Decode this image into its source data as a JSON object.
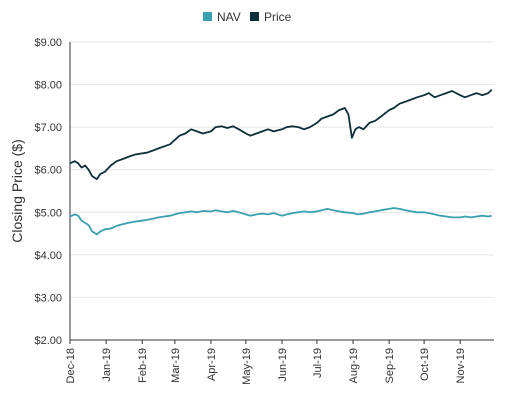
{
  "colors": {
    "nav": "#3a9fae",
    "price": "#0d2f3a",
    "grid": "#e6e6e6",
    "axis": "#333333"
  },
  "chart_data": {
    "type": "line",
    "ylabel": "Closing Price ($)",
    "ylim": [
      2,
      9
    ],
    "yticks": [
      {
        "value": 2,
        "label": "$2.00"
      },
      {
        "value": 3,
        "label": "$3.00"
      },
      {
        "value": 4,
        "label": "$4.00"
      },
      {
        "value": 5,
        "label": "$5.00"
      },
      {
        "value": 6,
        "label": "$6.00"
      },
      {
        "value": 7,
        "label": "$7.00"
      },
      {
        "value": 8,
        "label": "$8.00"
      },
      {
        "value": 9,
        "label": "$9.00"
      }
    ],
    "xlim": [
      "2018-12-01",
      "2019-11-30"
    ],
    "xticks": [
      {
        "date": "2018-12-01",
        "label": "Dec-18"
      },
      {
        "date": "2019-01-01",
        "label": "Jan-19"
      },
      {
        "date": "2019-02-01",
        "label": "Feb-19"
      },
      {
        "date": "2019-03-01",
        "label": "Mar-19"
      },
      {
        "date": "2019-04-01",
        "label": "Apr-19"
      },
      {
        "date": "2019-05-01",
        "label": "May-19"
      },
      {
        "date": "2019-06-01",
        "label": "Jun-19"
      },
      {
        "date": "2019-07-01",
        "label": "Jul-19"
      },
      {
        "date": "2019-08-01",
        "label": "Aug-19"
      },
      {
        "date": "2019-09-01",
        "label": "Sep-19"
      },
      {
        "date": "2019-10-01",
        "label": "Oct-19"
      },
      {
        "date": "2019-11-01",
        "label": "Nov-19"
      }
    ],
    "legend_position": "top-center",
    "grid": "horizontal",
    "series": [
      {
        "name": "NAV",
        "color": "#3a9fae",
        "points": [
          [
            "2018-12-01",
            4.9
          ],
          [
            "2018-12-05",
            4.95
          ],
          [
            "2018-12-08",
            4.92
          ],
          [
            "2018-12-11",
            4.8
          ],
          [
            "2018-12-14",
            4.75
          ],
          [
            "2018-12-17",
            4.7
          ],
          [
            "2018-12-20",
            4.55
          ],
          [
            "2018-12-24",
            4.48
          ],
          [
            "2018-12-27",
            4.55
          ],
          [
            "2018-12-31",
            4.6
          ],
          [
            "2019-01-05",
            4.62
          ],
          [
            "2019-01-10",
            4.68
          ],
          [
            "2019-01-15",
            4.72
          ],
          [
            "2019-01-20",
            4.75
          ],
          [
            "2019-01-25",
            4.78
          ],
          [
            "2019-01-31",
            4.8
          ],
          [
            "2019-02-05",
            4.82
          ],
          [
            "2019-02-10",
            4.85
          ],
          [
            "2019-02-15",
            4.88
          ],
          [
            "2019-02-20",
            4.9
          ],
          [
            "2019-02-25",
            4.92
          ],
          [
            "2019-03-01",
            4.95
          ],
          [
            "2019-03-05",
            4.98
          ],
          [
            "2019-03-10",
            5.0
          ],
          [
            "2019-03-15",
            5.02
          ],
          [
            "2019-03-20",
            5.0
          ],
          [
            "2019-03-25",
            5.03
          ],
          [
            "2019-04-01",
            5.02
          ],
          [
            "2019-04-05",
            5.05
          ],
          [
            "2019-04-10",
            5.02
          ],
          [
            "2019-04-15",
            5.0
          ],
          [
            "2019-04-20",
            5.03
          ],
          [
            "2019-04-25",
            5.0
          ],
          [
            "2019-05-01",
            4.95
          ],
          [
            "2019-05-05",
            4.92
          ],
          [
            "2019-05-10",
            4.95
          ],
          [
            "2019-05-15",
            4.97
          ],
          [
            "2019-05-20",
            4.95
          ],
          [
            "2019-05-25",
            4.98
          ],
          [
            "2019-06-01",
            4.92
          ],
          [
            "2019-06-05",
            4.95
          ],
          [
            "2019-06-10",
            4.98
          ],
          [
            "2019-06-15",
            5.0
          ],
          [
            "2019-06-20",
            5.02
          ],
          [
            "2019-06-25",
            5.0
          ],
          [
            "2019-07-01",
            5.02
          ],
          [
            "2019-07-05",
            5.05
          ],
          [
            "2019-07-10",
            5.08
          ],
          [
            "2019-07-15",
            5.05
          ],
          [
            "2019-07-20",
            5.02
          ],
          [
            "2019-07-25",
            5.0
          ],
          [
            "2019-08-01",
            4.98
          ],
          [
            "2019-08-05",
            4.95
          ],
          [
            "2019-08-10",
            4.97
          ],
          [
            "2019-08-15",
            5.0
          ],
          [
            "2019-08-20",
            5.02
          ],
          [
            "2019-08-25",
            5.05
          ],
          [
            "2019-09-01",
            5.08
          ],
          [
            "2019-09-05",
            5.1
          ],
          [
            "2019-09-10",
            5.08
          ],
          [
            "2019-09-15",
            5.05
          ],
          [
            "2019-09-20",
            5.02
          ],
          [
            "2019-09-25",
            5.0
          ],
          [
            "2019-10-01",
            5.0
          ],
          [
            "2019-10-05",
            4.98
          ],
          [
            "2019-10-10",
            4.95
          ],
          [
            "2019-10-15",
            4.92
          ],
          [
            "2019-10-20",
            4.9
          ],
          [
            "2019-10-25",
            4.88
          ],
          [
            "2019-11-01",
            4.88
          ],
          [
            "2019-11-05",
            4.9
          ],
          [
            "2019-11-10",
            4.88
          ],
          [
            "2019-11-15",
            4.9
          ],
          [
            "2019-11-20",
            4.92
          ],
          [
            "2019-11-25",
            4.9
          ],
          [
            "2019-11-28",
            4.92
          ]
        ]
      },
      {
        "name": "Price",
        "color": "#0d2f3a",
        "points": [
          [
            "2018-12-01",
            6.15
          ],
          [
            "2018-12-05",
            6.2
          ],
          [
            "2018-12-08",
            6.15
          ],
          [
            "2018-12-11",
            6.05
          ],
          [
            "2018-12-14",
            6.1
          ],
          [
            "2018-12-17",
            6.0
          ],
          [
            "2018-12-20",
            5.85
          ],
          [
            "2018-12-24",
            5.78
          ],
          [
            "2018-12-27",
            5.9
          ],
          [
            "2018-12-31",
            5.95
          ],
          [
            "2019-01-05",
            6.1
          ],
          [
            "2019-01-10",
            6.2
          ],
          [
            "2019-01-15",
            6.25
          ],
          [
            "2019-01-20",
            6.3
          ],
          [
            "2019-01-25",
            6.35
          ],
          [
            "2019-01-31",
            6.38
          ],
          [
            "2019-02-05",
            6.4
          ],
          [
            "2019-02-10",
            6.45
          ],
          [
            "2019-02-15",
            6.5
          ],
          [
            "2019-02-20",
            6.55
          ],
          [
            "2019-02-25",
            6.6
          ],
          [
            "2019-03-01",
            6.7
          ],
          [
            "2019-03-05",
            6.8
          ],
          [
            "2019-03-10",
            6.85
          ],
          [
            "2019-03-15",
            6.95
          ],
          [
            "2019-03-20",
            6.9
          ],
          [
            "2019-03-25",
            6.85
          ],
          [
            "2019-04-01",
            6.9
          ],
          [
            "2019-04-05",
            7.0
          ],
          [
            "2019-04-10",
            7.02
          ],
          [
            "2019-04-15",
            6.98
          ],
          [
            "2019-04-20",
            7.02
          ],
          [
            "2019-04-25",
            6.95
          ],
          [
            "2019-05-01",
            6.85
          ],
          [
            "2019-05-05",
            6.8
          ],
          [
            "2019-05-10",
            6.85
          ],
          [
            "2019-05-15",
            6.9
          ],
          [
            "2019-05-20",
            6.95
          ],
          [
            "2019-05-25",
            6.9
          ],
          [
            "2019-06-01",
            6.95
          ],
          [
            "2019-06-05",
            7.0
          ],
          [
            "2019-06-10",
            7.02
          ],
          [
            "2019-06-15",
            7.0
          ],
          [
            "2019-06-20",
            6.95
          ],
          [
            "2019-06-25",
            7.0
          ],
          [
            "2019-07-01",
            7.1
          ],
          [
            "2019-07-05",
            7.2
          ],
          [
            "2019-07-10",
            7.25
          ],
          [
            "2019-07-15",
            7.3
          ],
          [
            "2019-07-20",
            7.4
          ],
          [
            "2019-07-25",
            7.45
          ],
          [
            "2019-07-28",
            7.3
          ],
          [
            "2019-07-31",
            6.75
          ],
          [
            "2019-08-03",
            6.95
          ],
          [
            "2019-08-06",
            7.0
          ],
          [
            "2019-08-10",
            6.95
          ],
          [
            "2019-08-15",
            7.1
          ],
          [
            "2019-08-20",
            7.15
          ],
          [
            "2019-08-25",
            7.25
          ],
          [
            "2019-09-01",
            7.4
          ],
          [
            "2019-09-05",
            7.45
          ],
          [
            "2019-09-10",
            7.55
          ],
          [
            "2019-09-15",
            7.6
          ],
          [
            "2019-09-20",
            7.65
          ],
          [
            "2019-09-25",
            7.7
          ],
          [
            "2019-10-01",
            7.75
          ],
          [
            "2019-10-05",
            7.8
          ],
          [
            "2019-10-10",
            7.7
          ],
          [
            "2019-10-15",
            7.75
          ],
          [
            "2019-10-20",
            7.8
          ],
          [
            "2019-10-25",
            7.85
          ],
          [
            "2019-11-01",
            7.75
          ],
          [
            "2019-11-05",
            7.7
          ],
          [
            "2019-11-10",
            7.75
          ],
          [
            "2019-11-15",
            7.8
          ],
          [
            "2019-11-20",
            7.75
          ],
          [
            "2019-11-25",
            7.8
          ],
          [
            "2019-11-28",
            7.88
          ]
        ]
      }
    ]
  }
}
